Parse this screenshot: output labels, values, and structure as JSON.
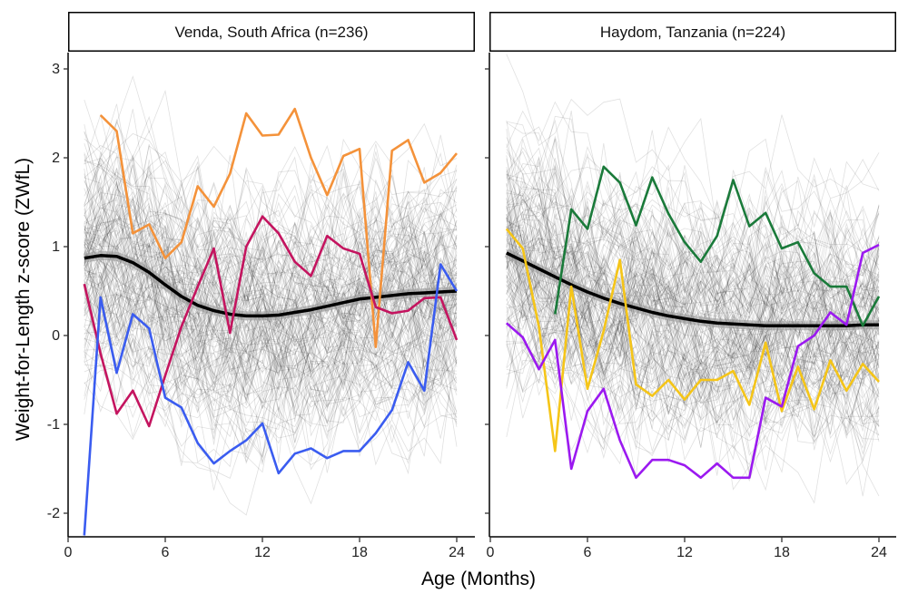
{
  "chart_data": {
    "type": "line",
    "xlabel": "Age (Months)",
    "ylabel": "Weight-for-Length z-score (ZWfL)",
    "xlim": [
      0,
      25
    ],
    "ylim": [
      -2.25,
      3.3
    ],
    "xticks": [
      0,
      6,
      12,
      18,
      24
    ],
    "yticks": [
      -2,
      -1,
      0,
      1,
      2,
      3
    ],
    "background_trajectories": "many thin grey individual trajectories (one per child)",
    "panels": [
      {
        "title": "Venda, South Africa (n=236)",
        "mean_curve": {
          "x": [
            1,
            2,
            3,
            4,
            5,
            6,
            7,
            8,
            9,
            10,
            11,
            12,
            13,
            14,
            15,
            16,
            17,
            18,
            19,
            20,
            21,
            22,
            23,
            24
          ],
          "values": [
            0.87,
            0.9,
            0.89,
            0.82,
            0.71,
            0.57,
            0.44,
            0.34,
            0.28,
            0.24,
            0.22,
            0.22,
            0.23,
            0.26,
            0.29,
            0.33,
            0.37,
            0.41,
            0.43,
            0.45,
            0.47,
            0.48,
            0.49,
            0.5
          ]
        },
        "series": [
          {
            "name": "orange",
            "color": "#F4923A",
            "x": [
              2,
              3,
              4,
              5,
              6,
              7,
              8,
              9,
              10,
              11,
              12,
              13,
              14,
              15,
              16,
              17,
              18,
              19,
              20,
              21,
              22,
              23,
              24
            ],
            "values": [
              2.48,
              2.3,
              1.15,
              1.25,
              0.87,
              1.05,
              1.68,
              1.45,
              1.82,
              2.5,
              2.25,
              2.26,
              2.55,
              2.0,
              1.58,
              2.02,
              2.1,
              -0.13,
              2.08,
              2.2,
              1.72,
              1.83,
              2.05
            ]
          },
          {
            "name": "magenta",
            "color": "#C4145F",
            "x": [
              1,
              2,
              3,
              4,
              5,
              6,
              7,
              8,
              9,
              10,
              11,
              12,
              13,
              14,
              15,
              16,
              17,
              18,
              19,
              20,
              21,
              22,
              23,
              24
            ],
            "values": [
              0.58,
              -0.2,
              -0.88,
              -0.62,
              -1.02,
              -0.45,
              0.1,
              0.55,
              0.98,
              0.03,
              1.0,
              1.34,
              1.15,
              0.83,
              0.67,
              1.12,
              0.98,
              0.92,
              0.32,
              0.25,
              0.28,
              0.42,
              0.43,
              -0.05
            ]
          },
          {
            "name": "blue",
            "color": "#3A5CF0",
            "x": [
              1,
              2,
              3,
              4,
              5,
              6,
              7,
              8,
              9,
              10,
              11,
              12,
              13,
              14,
              15,
              16,
              17,
              18,
              19,
              20,
              21,
              22,
              23,
              24
            ],
            "values": [
              -2.25,
              0.43,
              -0.42,
              0.24,
              0.08,
              -0.7,
              -0.81,
              -1.21,
              -1.44,
              -1.3,
              -1.18,
              -0.99,
              -1.55,
              -1.33,
              -1.27,
              -1.38,
              -1.3,
              -1.3,
              -1.1,
              -0.84,
              -0.3,
              -0.62,
              0.8,
              0.5
            ]
          }
        ]
      },
      {
        "title": "Haydom, Tanzania (n=224)",
        "mean_curve": {
          "x": [
            1,
            2,
            3,
            4,
            5,
            6,
            7,
            8,
            9,
            10,
            11,
            12,
            13,
            14,
            15,
            16,
            17,
            18,
            19,
            20,
            21,
            22,
            23,
            24
          ],
          "values": [
            0.93,
            0.84,
            0.75,
            0.66,
            0.57,
            0.49,
            0.42,
            0.36,
            0.31,
            0.26,
            0.22,
            0.19,
            0.16,
            0.14,
            0.13,
            0.12,
            0.11,
            0.11,
            0.11,
            0.11,
            0.11,
            0.11,
            0.12,
            0.12
          ]
        },
        "series": [
          {
            "name": "green",
            "color": "#1A7A3A",
            "x": [
              4,
              5,
              6,
              7,
              8,
              9,
              10,
              11,
              12,
              13,
              14,
              15,
              16,
              17,
              18,
              19,
              20,
              21,
              22,
              23,
              24
            ],
            "values": [
              0.24,
              1.42,
              1.2,
              1.9,
              1.72,
              1.24,
              1.78,
              1.37,
              1.05,
              0.83,
              1.12,
              1.75,
              1.23,
              1.38,
              0.98,
              1.05,
              0.7,
              0.55,
              0.55,
              0.11,
              0.44
            ]
          },
          {
            "name": "yellow",
            "color": "#F5C518",
            "x": [
              1,
              2,
              3,
              4,
              5,
              6,
              7,
              8,
              9,
              10,
              11,
              12,
              13,
              14,
              15,
              16,
              17,
              18,
              19,
              20,
              21,
              22,
              23,
              24
            ],
            "values": [
              1.2,
              0.98,
              0.1,
              -1.3,
              0.55,
              -0.6,
              0.05,
              0.85,
              -0.55,
              -0.68,
              -0.5,
              -0.72,
              -0.5,
              -0.5,
              -0.4,
              -0.78,
              -0.08,
              -0.85,
              -0.35,
              -0.83,
              -0.28,
              -0.62,
              -0.32,
              -0.52
            ]
          },
          {
            "name": "purple",
            "color": "#9B19F0",
            "x": [
              1,
              2,
              3,
              4,
              5,
              6,
              7,
              8,
              9,
              10,
              11,
              12,
              13,
              14,
              15,
              16,
              17,
              18,
              19,
              20,
              21,
              22,
              23,
              24
            ],
            "values": [
              0.14,
              -0.02,
              -0.38,
              -0.05,
              -1.5,
              -0.85,
              -0.6,
              -1.18,
              -1.6,
              -1.4,
              -1.4,
              -1.46,
              -1.6,
              -1.44,
              -1.6,
              -1.6,
              -0.7,
              -0.8,
              -0.12,
              0.0,
              0.26,
              0.12,
              0.93,
              1.02
            ]
          }
        ]
      }
    ]
  }
}
